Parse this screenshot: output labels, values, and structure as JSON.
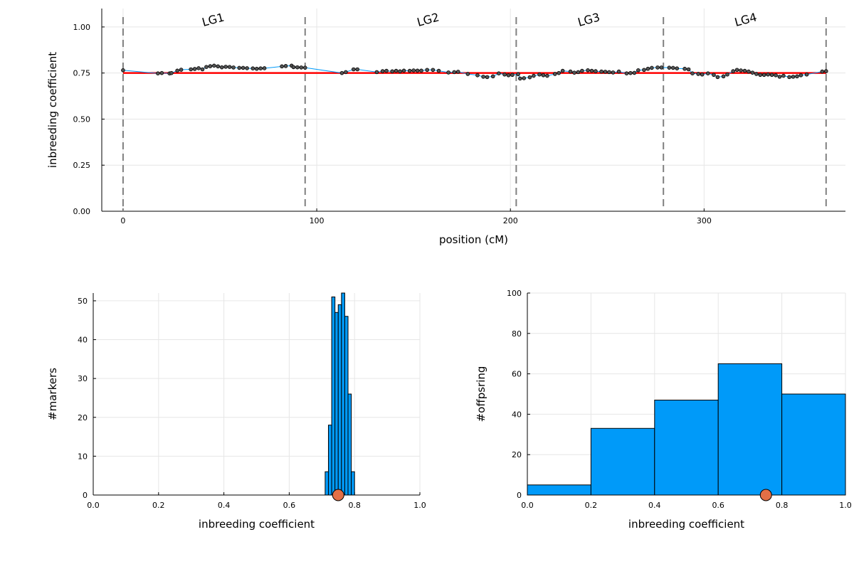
{
  "colors": {
    "line": "#009af9",
    "marker": "#555555",
    "mean_line": "#ff0000",
    "boundary": "#808080",
    "bar": "#009af9",
    "bar_edge": "#000000",
    "mean_dot": "#e26f46"
  },
  "chart_data": [
    {
      "type": "line",
      "xlabel": "position (cM)",
      "ylabel": "inbreeding coefficient",
      "xlim": [
        -11,
        373
      ],
      "ylim": [
        0,
        1.1
      ],
      "xticks": [
        "0",
        "100",
        "200",
        "300"
      ],
      "yticks": [
        "0.00",
        "0.25",
        "0.50",
        "0.75",
        "1.00"
      ],
      "xtick_values": [
        0,
        100,
        200,
        300
      ],
      "ytick_values": [
        0,
        0.25,
        0.5,
        0.75,
        1.0
      ],
      "grid": true,
      "mean": 0.75,
      "boundaries": [
        0,
        94,
        203,
        279,
        363
      ],
      "groups": [
        {
          "label": "LG1",
          "x": 47
        },
        {
          "label": "LG2",
          "x": 158
        },
        {
          "label": "LG3",
          "x": 241
        },
        {
          "label": "LG4",
          "x": 322
        }
      ],
      "x": [
        0,
        18,
        20,
        24,
        25,
        28,
        30,
        35,
        37,
        39,
        41,
        43,
        45,
        47,
        49,
        51,
        53,
        55,
        57,
        60,
        62,
        64,
        67,
        69,
        71,
        73,
        82,
        84,
        87,
        88,
        90,
        92,
        94,
        113,
        115,
        119,
        121,
        131,
        134,
        136,
        139,
        141,
        143,
        145,
        148,
        150,
        152,
        154,
        157,
        160,
        163,
        168,
        171,
        173,
        178,
        183,
        186,
        188,
        191,
        194,
        197,
        199,
        201,
        204,
        205,
        207,
        210,
        212,
        215,
        217,
        219,
        223,
        225,
        227,
        231,
        233,
        235,
        237,
        240,
        242,
        244,
        247,
        249,
        251,
        253,
        256,
        260,
        262,
        264,
        266,
        269,
        271,
        273,
        276,
        278,
        282,
        284,
        286,
        290,
        292,
        294,
        297,
        299,
        302,
        305,
        307,
        310,
        312,
        315,
        317,
        319,
        321,
        323,
        325,
        327,
        329,
        331,
        333,
        335,
        337,
        339,
        341,
        344,
        346,
        348,
        350,
        353,
        361,
        363
      ],
      "y": [
        0.765,
        0.748,
        0.75,
        0.748,
        0.75,
        0.763,
        0.768,
        0.77,
        0.772,
        0.776,
        0.77,
        0.783,
        0.787,
        0.79,
        0.786,
        0.781,
        0.784,
        0.783,
        0.78,
        0.778,
        0.778,
        0.776,
        0.775,
        0.773,
        0.775,
        0.776,
        0.786,
        0.788,
        0.79,
        0.782,
        0.781,
        0.78,
        0.779,
        0.75,
        0.755,
        0.77,
        0.77,
        0.755,
        0.76,
        0.762,
        0.759,
        0.762,
        0.759,
        0.763,
        0.762,
        0.764,
        0.763,
        0.763,
        0.767,
        0.767,
        0.762,
        0.753,
        0.755,
        0.757,
        0.745,
        0.738,
        0.73,
        0.728,
        0.732,
        0.748,
        0.742,
        0.738,
        0.74,
        0.744,
        0.72,
        0.722,
        0.727,
        0.735,
        0.742,
        0.738,
        0.735,
        0.745,
        0.75,
        0.762,
        0.758,
        0.752,
        0.755,
        0.762,
        0.765,
        0.762,
        0.76,
        0.758,
        0.757,
        0.755,
        0.753,
        0.758,
        0.748,
        0.75,
        0.751,
        0.765,
        0.767,
        0.773,
        0.778,
        0.78,
        0.78,
        0.779,
        0.778,
        0.775,
        0.773,
        0.77,
        0.748,
        0.745,
        0.742,
        0.748,
        0.74,
        0.728,
        0.732,
        0.742,
        0.76,
        0.767,
        0.764,
        0.762,
        0.758,
        0.752,
        0.745,
        0.74,
        0.74,
        0.742,
        0.74,
        0.738,
        0.73,
        0.735,
        0.728,
        0.73,
        0.732,
        0.738,
        0.742,
        0.758,
        0.76
      ]
    },
    {
      "type": "bar",
      "xlabel": "inbreeding coefficient",
      "ylabel": "#markers",
      "xlim": [
        0,
        1
      ],
      "ylim": [
        0,
        52
      ],
      "xticks": [
        "0.0",
        "0.2",
        "0.4",
        "0.6",
        "0.8",
        "1.0"
      ],
      "yticks": [
        "0",
        "10",
        "20",
        "30",
        "40",
        "50"
      ],
      "xtick_values": [
        0,
        0.2,
        0.4,
        0.6,
        0.8,
        1.0
      ],
      "ytick_values": [
        0,
        10,
        20,
        30,
        40,
        50
      ],
      "grid": true,
      "bin_edges": [
        0.71,
        0.72,
        0.73,
        0.74,
        0.75,
        0.76,
        0.77,
        0.78,
        0.79,
        0.8
      ],
      "values": [
        6,
        18,
        51,
        47,
        49,
        52,
        46,
        26,
        6
      ],
      "mean": 0.75
    },
    {
      "type": "bar",
      "xlabel": "inbreeding coefficient",
      "ylabel": "#offpsring",
      "xlim": [
        0,
        1
      ],
      "ylim": [
        0,
        100
      ],
      "xticks": [
        "0.0",
        "0.2",
        "0.4",
        "0.6",
        "0.8",
        "1.0"
      ],
      "yticks": [
        "0",
        "20",
        "40",
        "60",
        "80",
        "100"
      ],
      "xtick_values": [
        0,
        0.2,
        0.4,
        0.6,
        0.8,
        1.0
      ],
      "ytick_values": [
        0,
        20,
        40,
        60,
        80,
        100
      ],
      "grid": true,
      "bin_edges": [
        0,
        0.2,
        0.4,
        0.6,
        0.8,
        1.0
      ],
      "values": [
        5,
        33,
        47,
        65,
        50
      ],
      "mean": 0.75
    }
  ]
}
